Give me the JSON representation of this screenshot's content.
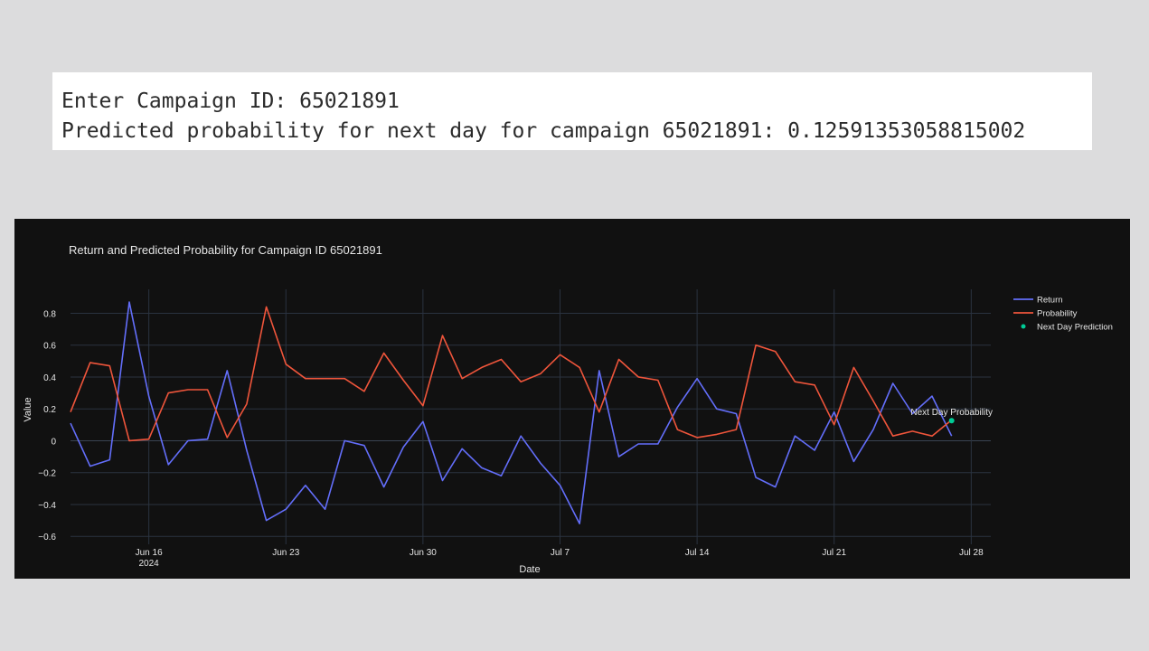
{
  "console": {
    "line1": "Enter Campaign ID: 65021891",
    "line2": "Predicted probability for next day for campaign 65021891: 0.12591353058815002"
  },
  "colors": {
    "return": "#636efa",
    "probability": "#ef553b",
    "prediction": "#00cc96",
    "background": "#111111",
    "grid": "#2a3340"
  },
  "chart_data": {
    "type": "line",
    "title": "Return and Predicted Probability for Campaign ID 65021891",
    "xlabel": "Date",
    "ylabel": "Value",
    "ylim": [
      -0.65,
      0.95
    ],
    "xlim": [
      "2024-06-12",
      "2024-07-29"
    ],
    "grid": true,
    "legend_position": "top-right",
    "x_ticks": [
      {
        "date": "2024-06-16",
        "label": "Jun 16",
        "sublabel": "2024"
      },
      {
        "date": "2024-06-23",
        "label": "Jun 23"
      },
      {
        "date": "2024-06-30",
        "label": "Jun 30"
      },
      {
        "date": "2024-07-07",
        "label": "Jul 7"
      },
      {
        "date": "2024-07-14",
        "label": "Jul 14"
      },
      {
        "date": "2024-07-21",
        "label": "Jul 21"
      },
      {
        "date": "2024-07-28",
        "label": "Jul 28"
      }
    ],
    "y_ticks": [
      -0.6,
      -0.4,
      -0.2,
      0,
      0.2,
      0.4,
      0.6,
      0.8
    ],
    "y_tick_labels": [
      "−0.6",
      "−0.4",
      "−0.2",
      "0",
      "0.2",
      "0.4",
      "0.6",
      "0.8"
    ],
    "start_date": "2024-06-12",
    "series": [
      {
        "name": "Return",
        "values": [
          0.11,
          -0.16,
          -0.12,
          0.87,
          0.28,
          -0.15,
          0.0,
          0.01,
          0.44,
          -0.06,
          -0.5,
          -0.43,
          -0.28,
          -0.43,
          0.0,
          -0.03,
          -0.29,
          -0.04,
          0.12,
          -0.25,
          -0.05,
          -0.17,
          -0.22,
          0.03,
          -0.14,
          -0.28,
          -0.52,
          0.44,
          -0.1,
          -0.02,
          -0.02,
          0.21,
          0.39,
          0.2,
          0.17,
          -0.23,
          -0.29,
          0.03,
          -0.06,
          0.18,
          -0.13,
          0.07,
          0.36,
          0.17,
          0.28,
          0.03
        ]
      },
      {
        "name": "Probability",
        "values": [
          0.18,
          0.49,
          0.47,
          0.0,
          0.01,
          0.3,
          0.32,
          0.32,
          0.02,
          0.23,
          0.84,
          0.48,
          0.39,
          0.39,
          0.39,
          0.31,
          0.55,
          0.38,
          0.22,
          0.66,
          0.39,
          0.46,
          0.51,
          0.37,
          0.42,
          0.54,
          0.46,
          0.18,
          0.51,
          0.4,
          0.38,
          0.07,
          0.02,
          0.04,
          0.07,
          0.6,
          0.56,
          0.37,
          0.35,
          0.1,
          0.46,
          0.25,
          0.03,
          0.06,
          0.03,
          0.13
        ]
      },
      {
        "name": "Next Day Prediction",
        "x": "2024-07-27",
        "y": 0.12591353058815002,
        "annotation": "Next Day Probability"
      }
    ]
  }
}
